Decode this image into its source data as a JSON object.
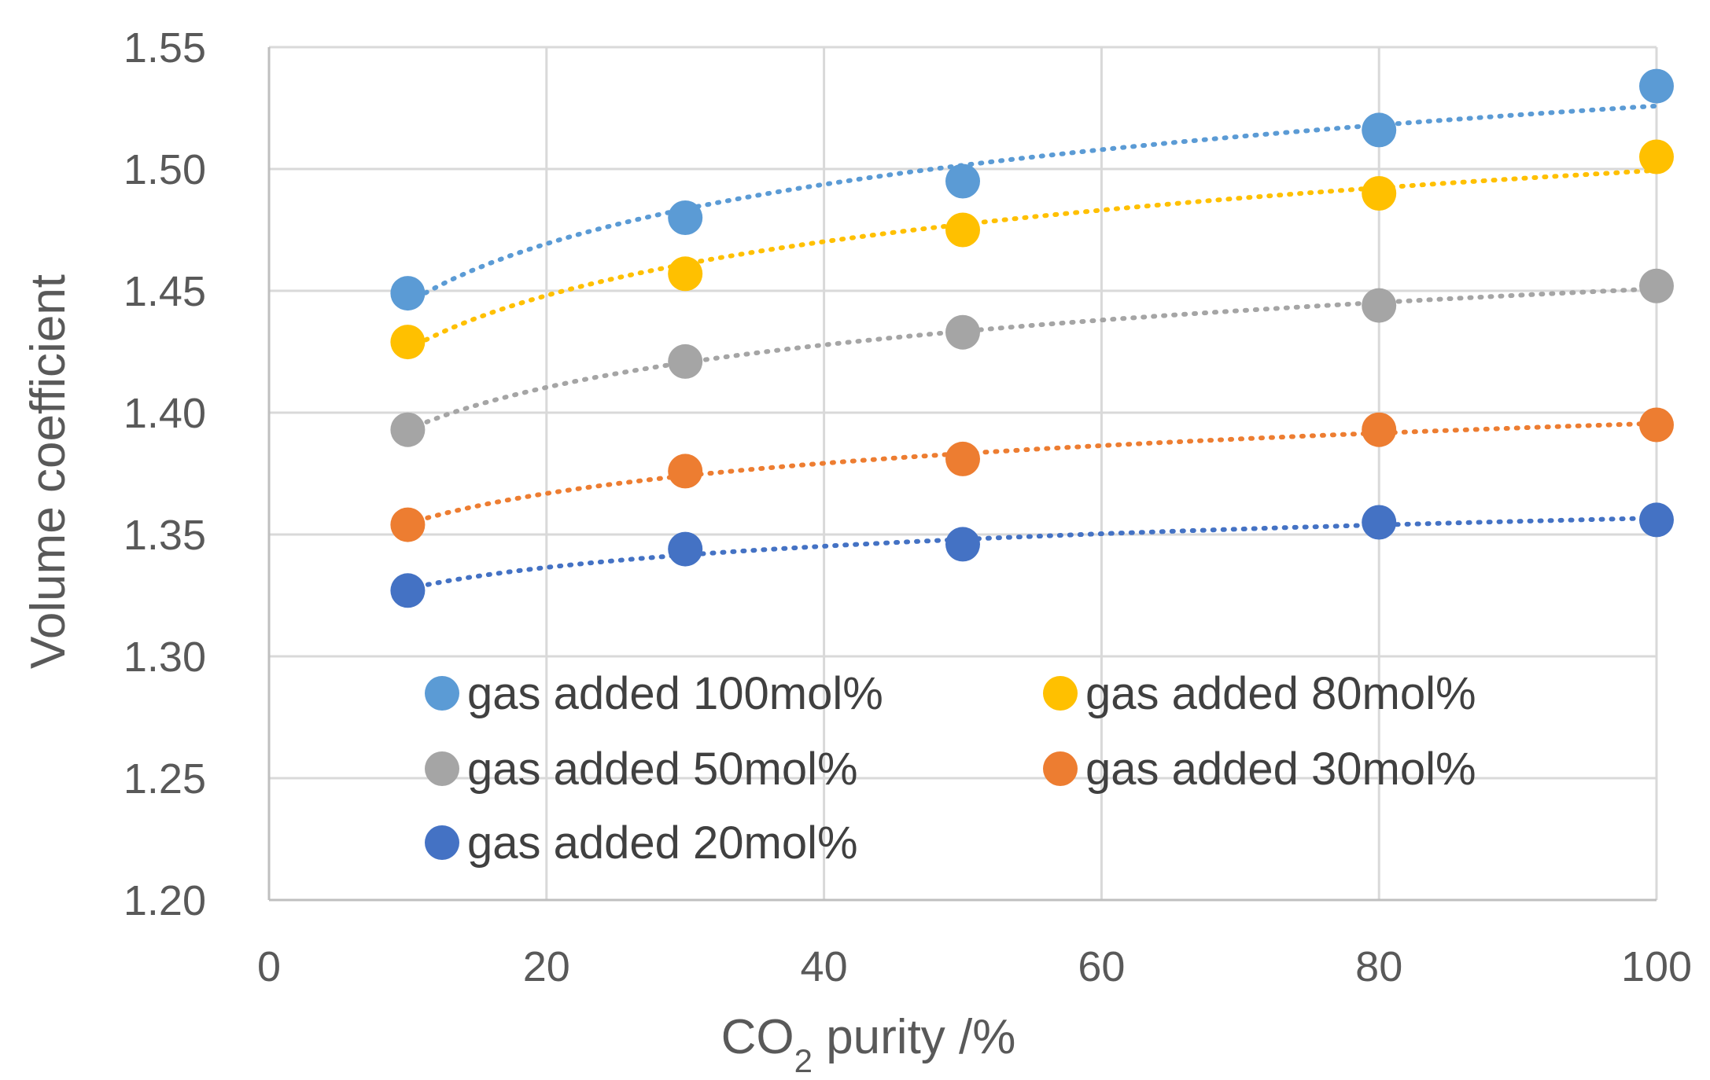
{
  "chart_data": {
    "type": "scatter",
    "title": "",
    "xlabel": "CO2 purity /%",
    "xlabel_parts": [
      "CO",
      "2",
      " purity /%"
    ],
    "ylabel": "Volume coefficient",
    "xlim": [
      0,
      100
    ],
    "ylim": [
      1.2,
      1.55
    ],
    "x_ticks": [
      "0",
      "20",
      "40",
      "60",
      "80",
      "100"
    ],
    "y_ticks": [
      "1.20",
      "1.25",
      "1.30",
      "1.35",
      "1.40",
      "1.45",
      "1.50",
      "1.55"
    ],
    "grid": true,
    "trendline": "dotted",
    "legend_position": "lower-inside",
    "x": [
      10,
      30,
      50,
      80,
      100
    ],
    "series": [
      {
        "name": "gas added 100mol%",
        "color": "#5b9bd5",
        "values": [
          1.449,
          1.48,
          1.495,
          1.516,
          1.534
        ]
      },
      {
        "name": "gas added 80mol%",
        "color": "#ffc000",
        "values": [
          1.429,
          1.457,
          1.475,
          1.49,
          1.505
        ]
      },
      {
        "name": "gas added 50mol%",
        "color": "#a5a5a5",
        "values": [
          1.393,
          1.421,
          1.433,
          1.444,
          1.452
        ]
      },
      {
        "name": "gas added 30mol%",
        "color": "#ed7d31",
        "values": [
          1.354,
          1.376,
          1.381,
          1.393,
          1.395
        ]
      },
      {
        "name": "gas added 20mol%",
        "color": "#4472c4",
        "values": [
          1.327,
          1.344,
          1.346,
          1.355,
          1.356
        ]
      }
    ]
  }
}
